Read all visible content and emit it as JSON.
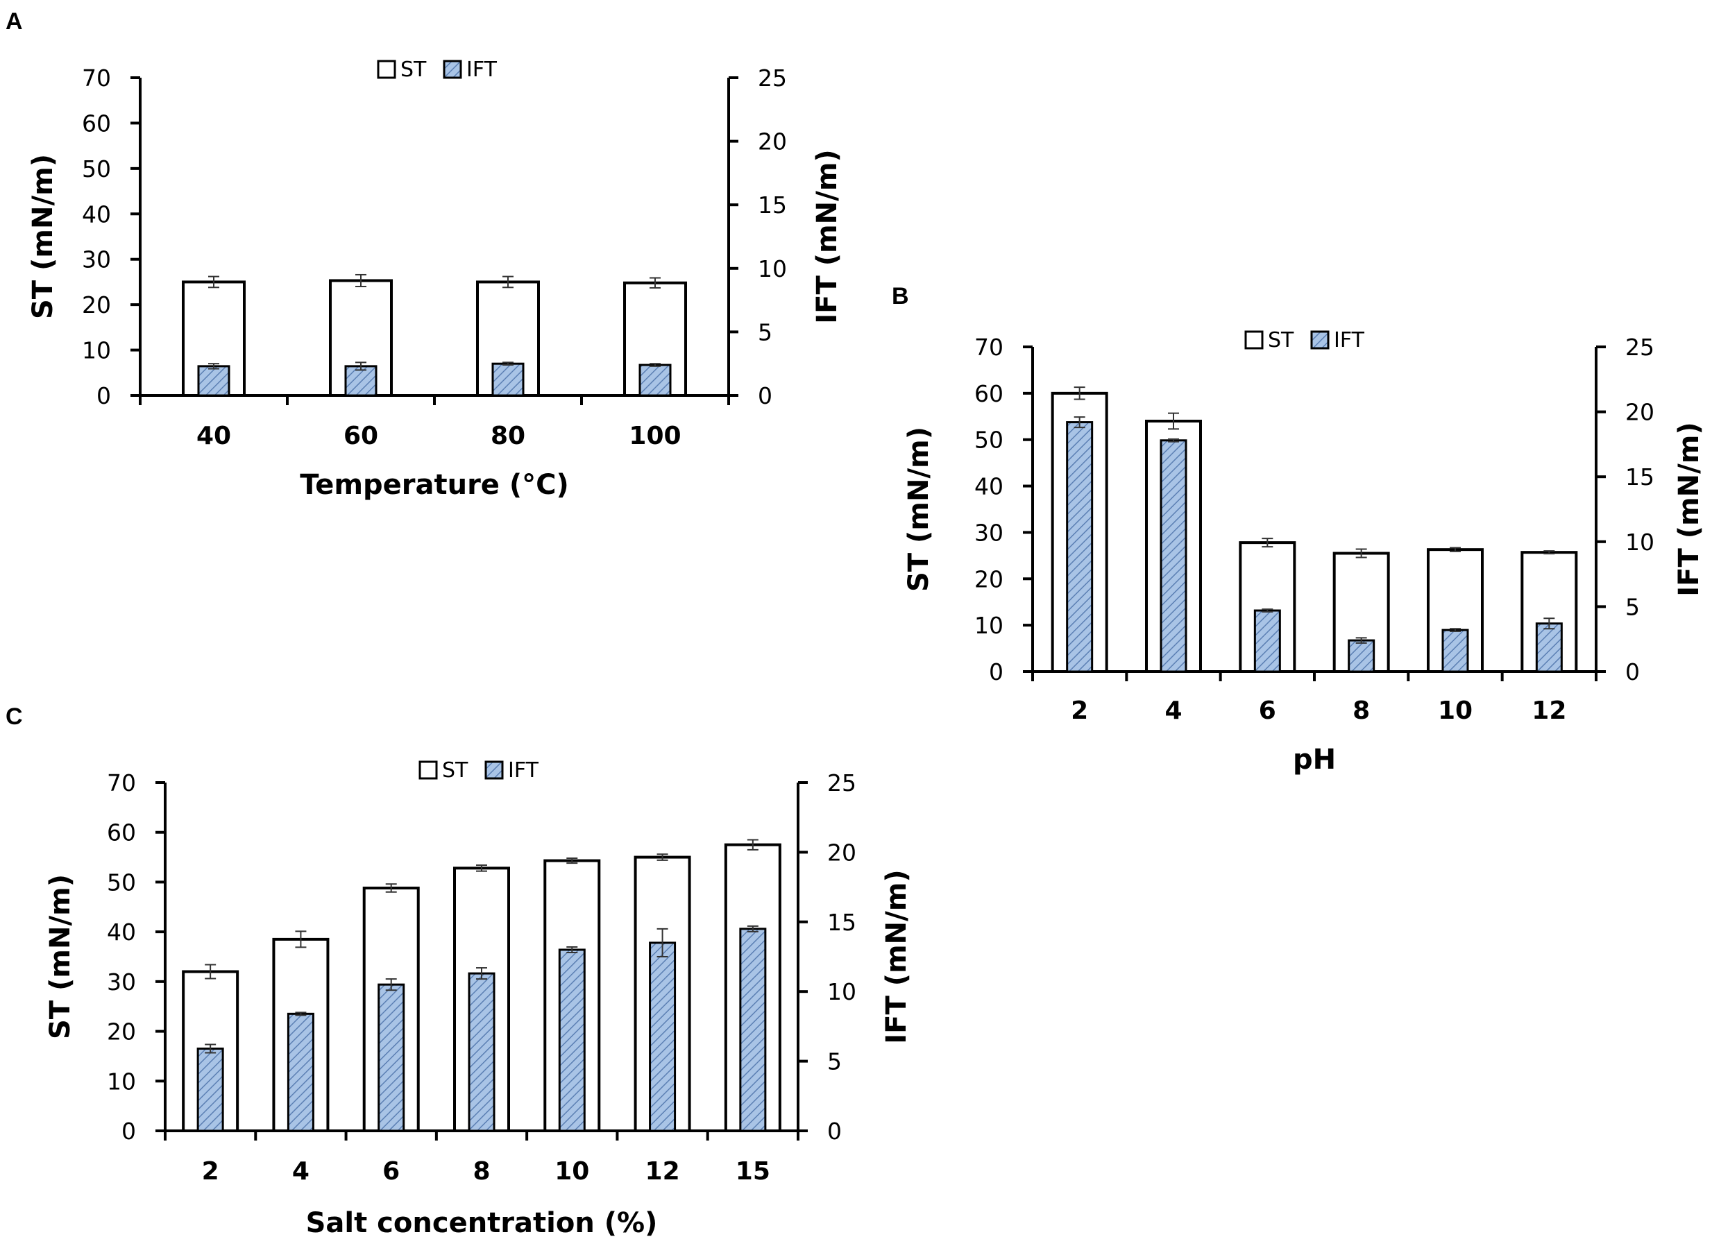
{
  "colors": {
    "st_fill": "#ffffff",
    "ift_fill": "#a9c4e6",
    "ift_hatch": "#5b7fb3",
    "stroke": "#000000"
  },
  "chart_data": [
    {
      "panel": "A",
      "type": "bar",
      "categories": [
        "40",
        "60",
        "80",
        "100"
      ],
      "xlabel": "Temperature (°C)",
      "ylabel": "ST (mN/m)",
      "y2label": "IFT (mN/m)",
      "ylim": [
        0,
        70
      ],
      "y2lim": [
        0,
        25
      ],
      "yticks": [
        "0",
        "10",
        "20",
        "30",
        "40",
        "50",
        "60",
        "70"
      ],
      "y2ticks": [
        "0",
        "5",
        "10",
        "15",
        "20",
        "25"
      ],
      "legend": [
        "ST",
        "IFT"
      ],
      "series": [
        {
          "name": "ST",
          "axis": "left",
          "values": [
            25.0,
            25.3,
            25.0,
            24.8
          ],
          "errors": [
            1.2,
            1.3,
            1.2,
            1.1
          ]
        },
        {
          "name": "IFT",
          "axis": "right",
          "values": [
            2.3,
            2.3,
            2.5,
            2.4
          ],
          "errors": [
            0.2,
            0.3,
            0.1,
            0.1
          ]
        }
      ]
    },
    {
      "panel": "B",
      "type": "bar",
      "categories": [
        "2",
        "4",
        "6",
        "8",
        "10",
        "12"
      ],
      "xlabel": "pH",
      "ylabel": "ST (mN/m)",
      "y2label": "IFT (mN/m)",
      "ylim": [
        0,
        70
      ],
      "y2lim": [
        0,
        25
      ],
      "yticks": [
        "0",
        "10",
        "20",
        "30",
        "40",
        "50",
        "60",
        "70"
      ],
      "y2ticks": [
        "0",
        "5",
        "10",
        "15",
        "20",
        "25"
      ],
      "legend": [
        "ST",
        "IFT"
      ],
      "series": [
        {
          "name": "ST",
          "axis": "left",
          "values": [
            60.0,
            54.0,
            27.8,
            25.5,
            26.3,
            25.7
          ],
          "errors": [
            1.3,
            1.7,
            0.9,
            0.9,
            0.4,
            0.3
          ]
        },
        {
          "name": "IFT",
          "axis": "right",
          "values": [
            19.2,
            17.8,
            4.7,
            2.4,
            3.2,
            3.7
          ],
          "errors": [
            0.4,
            0.1,
            0.1,
            0.2,
            0.1,
            0.4
          ]
        }
      ]
    },
    {
      "panel": "C",
      "type": "bar",
      "categories": [
        "2",
        "4",
        "6",
        "8",
        "10",
        "12",
        "15"
      ],
      "xlabel": "Salt concentration (%)",
      "ylabel": "ST (mN/m)",
      "y2label": "IFT (mN/m)",
      "ylim": [
        0,
        70
      ],
      "y2lim": [
        0,
        25
      ],
      "yticks": [
        "0",
        "10",
        "20",
        "30",
        "40",
        "50",
        "60",
        "70"
      ],
      "y2ticks": [
        "0",
        "5",
        "10",
        "15",
        "20",
        "25"
      ],
      "legend": [
        "ST",
        "IFT"
      ],
      "series": [
        {
          "name": "ST",
          "axis": "left",
          "values": [
            32.0,
            38.5,
            48.8,
            52.8,
            54.3,
            55.0,
            57.5
          ],
          "errors": [
            1.4,
            1.6,
            0.8,
            0.6,
            0.5,
            0.6,
            1.0
          ]
        },
        {
          "name": "IFT",
          "axis": "right",
          "values": [
            5.9,
            8.4,
            10.5,
            11.3,
            13.0,
            13.5,
            14.5
          ],
          "errors": [
            0.3,
            0.1,
            0.4,
            0.4,
            0.2,
            1.0,
            0.2
          ]
        }
      ]
    }
  ]
}
